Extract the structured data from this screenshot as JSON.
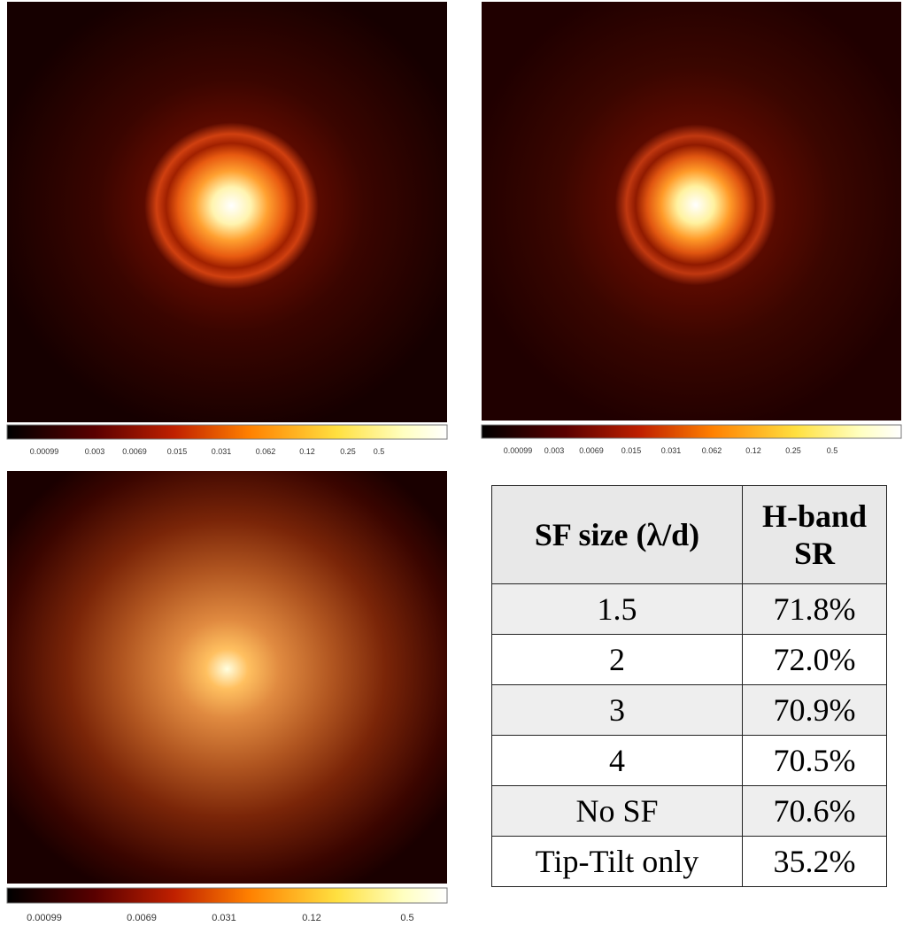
{
  "panels": [
    {
      "colorbar_ticks": [
        "0.00099",
        "0.003",
        "0.0069",
        "0.015",
        "0.031",
        "0.062",
        "0.12",
        "0.25",
        "0.5"
      ]
    },
    {
      "colorbar_ticks": [
        "0.00099",
        "0.003",
        "0.0069",
        "0.015",
        "0.031",
        "0.062",
        "0.12",
        "0.25",
        "0.5"
      ]
    },
    {
      "colorbar_ticks": [
        "0.00099",
        "0.0069",
        "0.031",
        "0.12",
        "0.5"
      ]
    }
  ],
  "table": {
    "header": [
      "SF size (λ/d)",
      "H-band SR"
    ],
    "rows": [
      [
        "1.5",
        "71.8%"
      ],
      [
        "2",
        "72.0%"
      ],
      [
        "3",
        "70.9%"
      ],
      [
        "4",
        "70.5%"
      ],
      [
        "No SF",
        "70.6%"
      ],
      [
        "Tip-Tilt only",
        "35.2%"
      ]
    ]
  }
}
